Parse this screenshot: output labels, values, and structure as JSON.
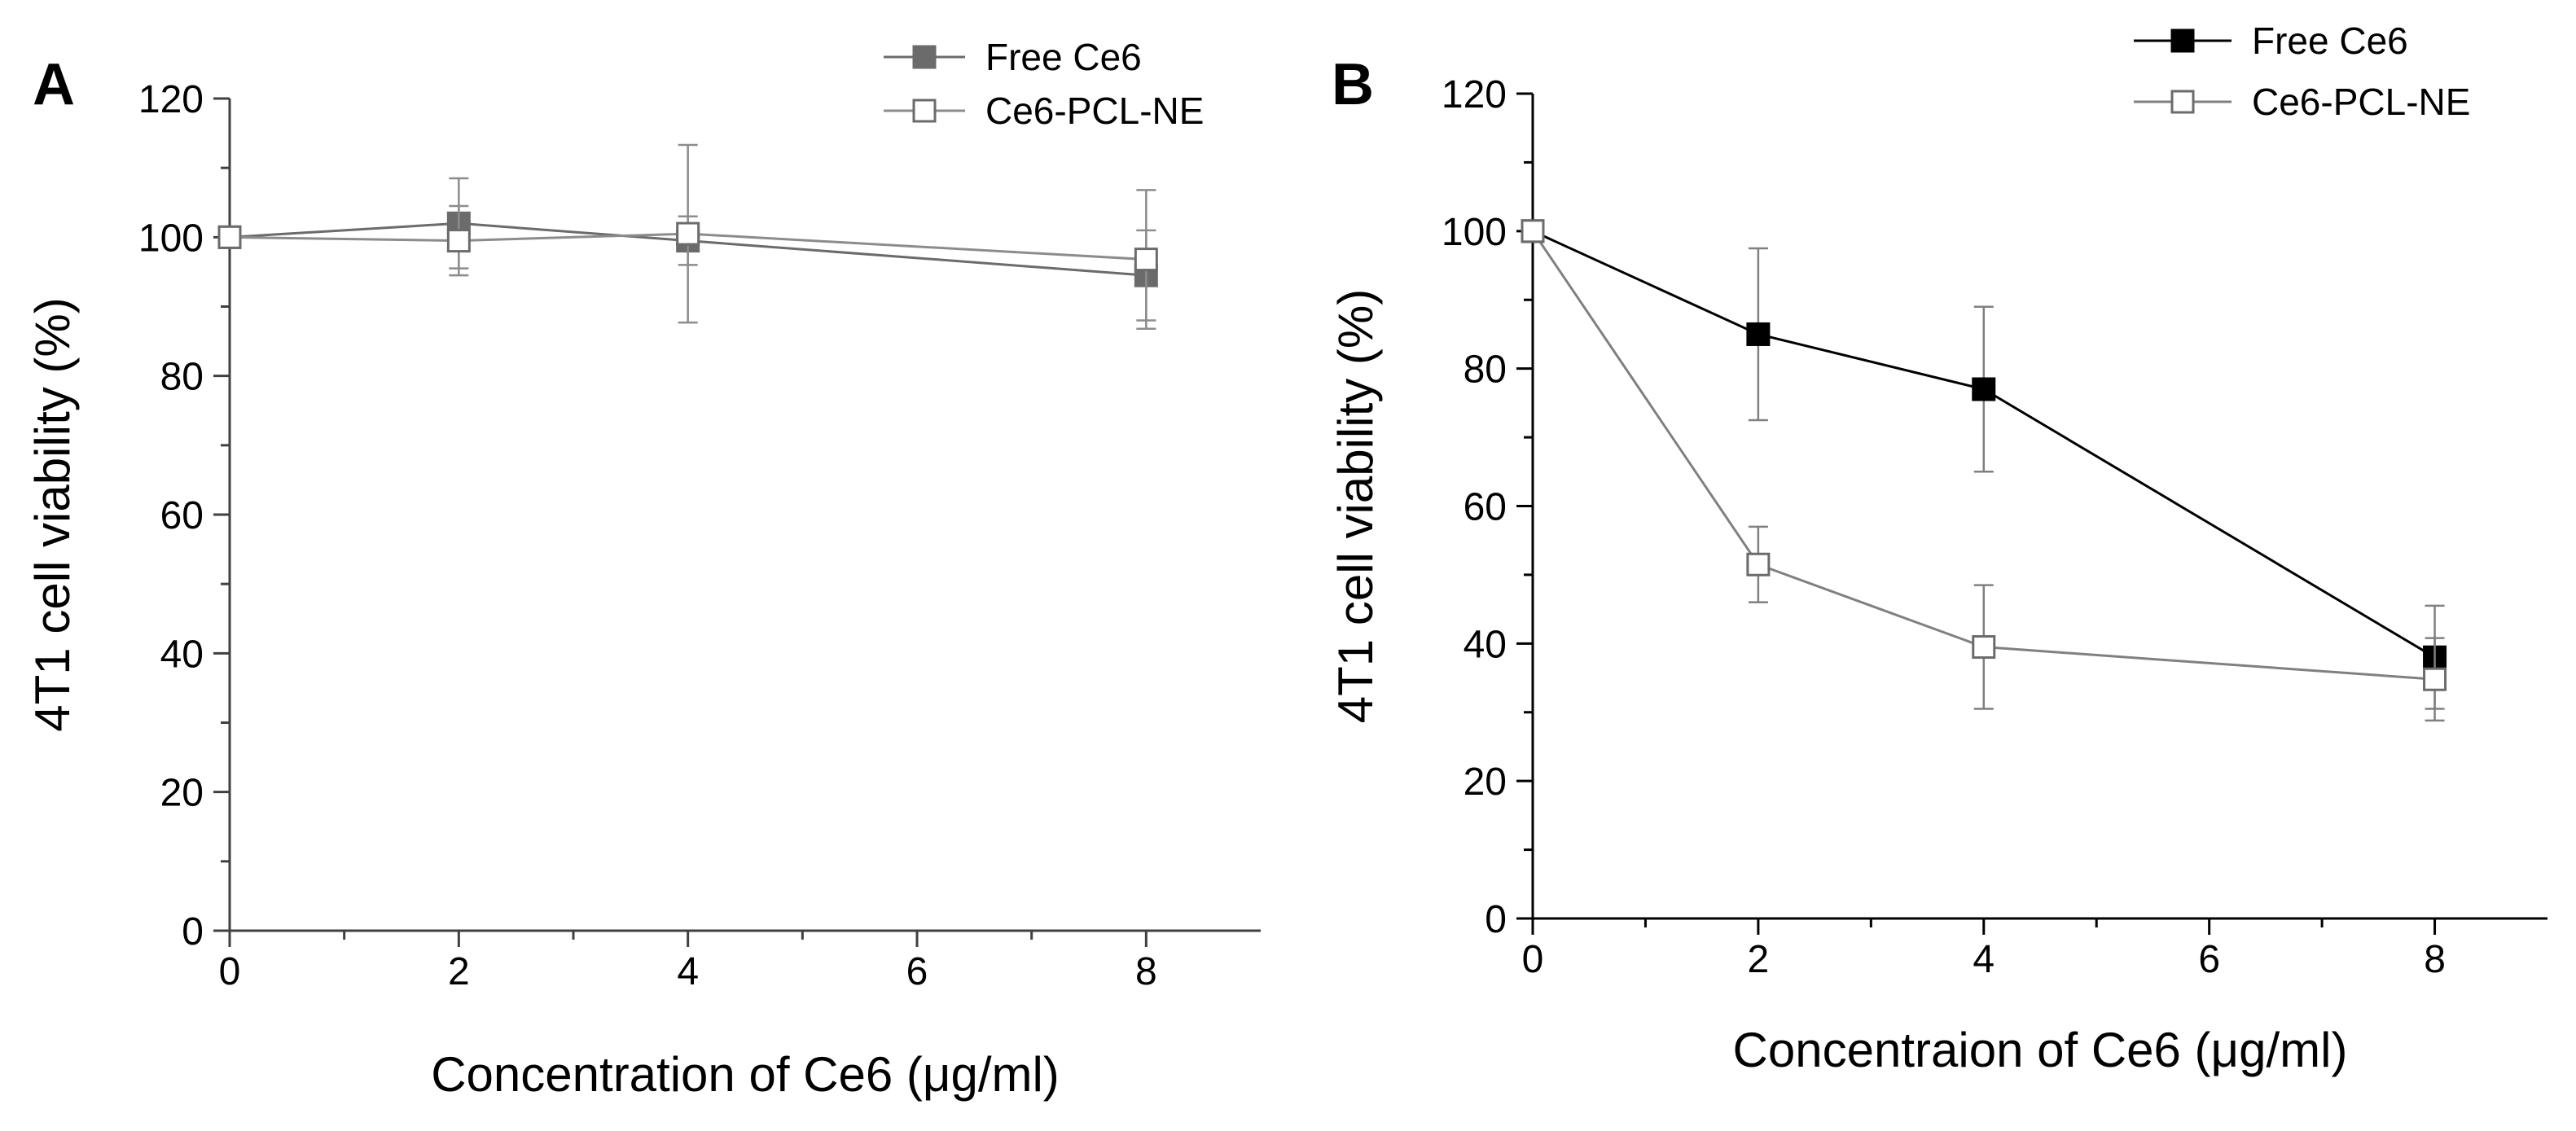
{
  "chart_data": [
    {
      "type": "line",
      "panel_label": "A",
      "xlabel": "Concentration of Ce6 (μg/ml)",
      "ylabel": "4T1 cell viability (%)",
      "xlim": [
        0,
        9
      ],
      "ylim": [
        0,
        120
      ],
      "x_ticks": [
        "0",
        "2",
        "4",
        "6",
        "8"
      ],
      "y_ticks": [
        "0",
        "20",
        "40",
        "60",
        "80",
        "100",
        "120"
      ],
      "grid": false,
      "legend_position": "top-right",
      "x": [
        0,
        2,
        4,
        8
      ],
      "series": [
        {
          "name": "Free Ce6",
          "values": [
            100,
            102,
            99.5,
            94.5
          ],
          "errors": [
            0,
            6.5,
            3.5,
            6.5
          ],
          "color": "#6b6b6b",
          "marker": "filled-square"
        },
        {
          "name": "Ce6-PCL-NE",
          "values": [
            100,
            99.5,
            100.5,
            96.8
          ],
          "errors": [
            0,
            5.0,
            12.8,
            10.0
          ],
          "color": "#8c8c8c",
          "marker": "open-square"
        }
      ]
    },
    {
      "type": "line",
      "panel_label": "B",
      "xlabel": "Concentraion of Ce6 (μg/ml)",
      "ylabel": "4T1 cell viability (%)",
      "xlim": [
        0,
        9
      ],
      "ylim": [
        0,
        120
      ],
      "x_ticks": [
        "0",
        "2",
        "4",
        "6",
        "8"
      ],
      "y_ticks": [
        "0",
        "20",
        "40",
        "60",
        "80",
        "100",
        "120"
      ],
      "grid": false,
      "legend_position": "top-right",
      "x": [
        0,
        2,
        4,
        8
      ],
      "series": [
        {
          "name": "Free Ce6",
          "values": [
            100,
            85,
            77,
            38
          ],
          "errors": [
            0,
            12.5,
            12,
            7.5
          ],
          "color": "#000000",
          "marker": "filled-square"
        },
        {
          "name": "Ce6-PCL-NE",
          "values": [
            100,
            51.5,
            39.5,
            34.8
          ],
          "errors": [
            0,
            5.5,
            9,
            6
          ],
          "color": "#808080",
          "marker": "open-square"
        }
      ]
    }
  ]
}
